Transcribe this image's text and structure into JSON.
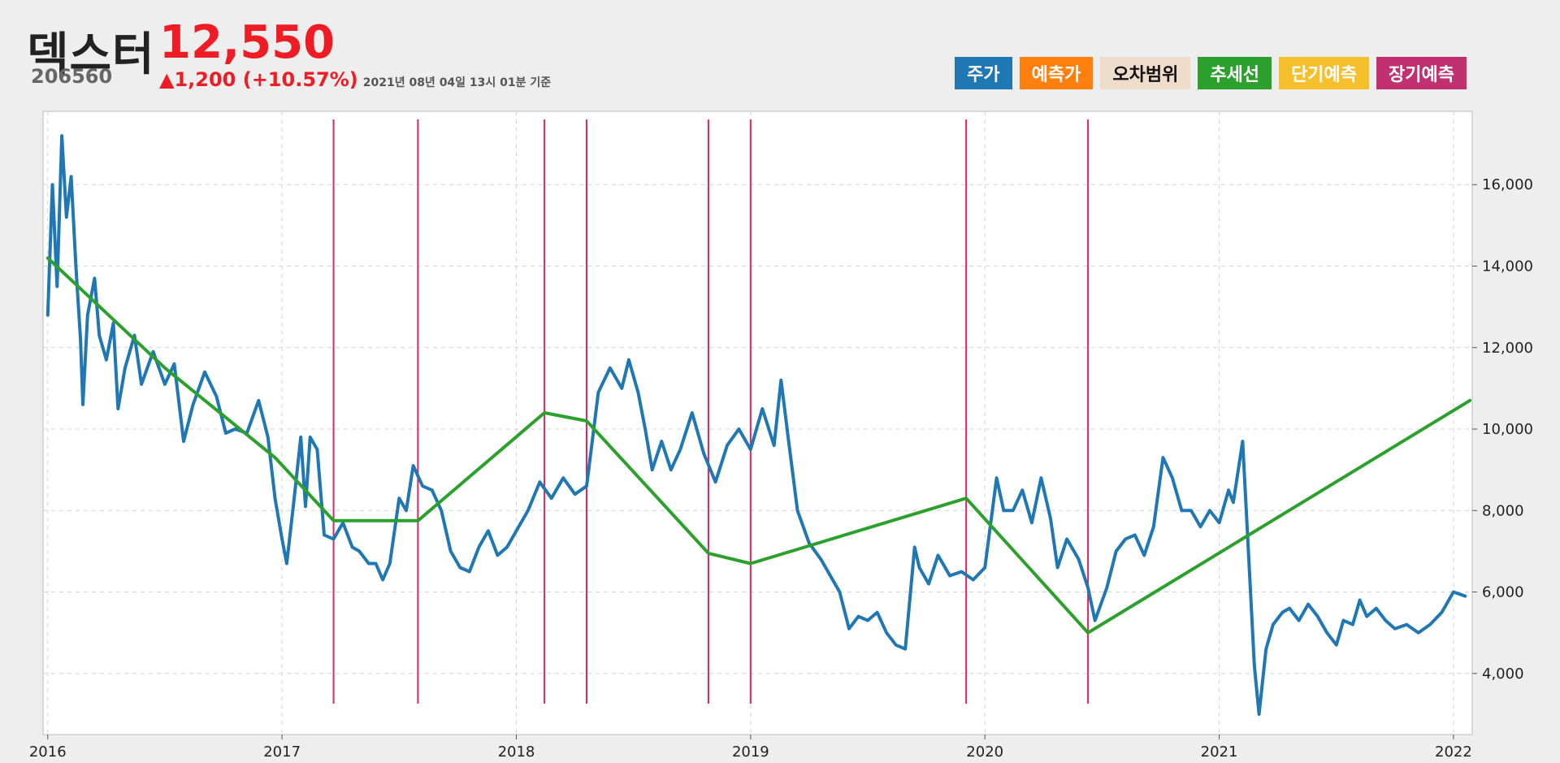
{
  "header": {
    "company_name": "덱스터",
    "ticker_code": "206560",
    "price": "12,550",
    "change": "▲1,200 (+10.57%)",
    "as_of": "2021년 08년 04일 13시 01분 기준"
  },
  "legend": [
    {
      "label": "주가",
      "color": "#1f77b4",
      "text_color": "#ffffff"
    },
    {
      "label": "예측가",
      "color": "#ff7f0e",
      "text_color": "#ffffff"
    },
    {
      "label": "오차범위",
      "color": "#f0dccb",
      "text_color": "#111111"
    },
    {
      "label": "추세선",
      "color": "#2ca02c",
      "text_color": "#ffffff"
    },
    {
      "label": "단기예측",
      "color": "#f6c02c",
      "text_color": "#ffffff"
    },
    {
      "label": "장기예측",
      "color": "#c1306f",
      "text_color": "#ffffff"
    }
  ],
  "chart_data": {
    "type": "line",
    "xlim": [
      2015.98,
      2022.08
    ],
    "ylim": [
      2500,
      17800
    ],
    "x_ticks": [
      2016,
      2017,
      2018,
      2019,
      2020,
      2021,
      2022
    ],
    "x_tick_labels": [
      "2016",
      "2017",
      "2018",
      "2019",
      "2020",
      "2021",
      "2022"
    ],
    "y_ticks": [
      4000,
      6000,
      8000,
      10000,
      12000,
      14000,
      16000
    ],
    "y_tick_labels": [
      "4,000",
      "6,000",
      "8,000",
      "10,000",
      "12,000",
      "14,000",
      "16,000"
    ],
    "grid": true,
    "series": [
      {
        "role": "price",
        "color": "#1f77b4",
        "points": [
          [
            2016.0,
            12800
          ],
          [
            2016.02,
            16000
          ],
          [
            2016.04,
            13500
          ],
          [
            2016.06,
            17200
          ],
          [
            2016.08,
            15200
          ],
          [
            2016.1,
            16200
          ],
          [
            2016.12,
            14000
          ],
          [
            2016.14,
            12200
          ],
          [
            2016.15,
            10600
          ],
          [
            2016.17,
            12800
          ],
          [
            2016.2,
            13700
          ],
          [
            2016.22,
            12300
          ],
          [
            2016.25,
            11700
          ],
          [
            2016.28,
            12600
          ],
          [
            2016.3,
            10500
          ],
          [
            2016.33,
            11500
          ],
          [
            2016.37,
            12300
          ],
          [
            2016.4,
            11100
          ],
          [
            2016.45,
            11900
          ],
          [
            2016.5,
            11100
          ],
          [
            2016.54,
            11600
          ],
          [
            2016.58,
            9700
          ],
          [
            2016.62,
            10600
          ],
          [
            2016.67,
            11400
          ],
          [
            2016.72,
            10800
          ],
          [
            2016.76,
            9900
          ],
          [
            2016.8,
            10000
          ],
          [
            2016.85,
            9900
          ],
          [
            2016.9,
            10700
          ],
          [
            2016.94,
            9800
          ],
          [
            2016.97,
            8300
          ],
          [
            2017.0,
            7300
          ],
          [
            2017.02,
            6700
          ],
          [
            2017.05,
            8200
          ],
          [
            2017.08,
            9800
          ],
          [
            2017.1,
            8100
          ],
          [
            2017.12,
            9800
          ],
          [
            2017.15,
            9500
          ],
          [
            2017.18,
            7400
          ],
          [
            2017.22,
            7300
          ],
          [
            2017.26,
            7700
          ],
          [
            2017.3,
            7100
          ],
          [
            2017.33,
            7000
          ],
          [
            2017.37,
            6700
          ],
          [
            2017.4,
            6700
          ],
          [
            2017.43,
            6300
          ],
          [
            2017.46,
            6700
          ],
          [
            2017.5,
            8300
          ],
          [
            2017.53,
            8000
          ],
          [
            2017.56,
            9100
          ],
          [
            2017.6,
            8600
          ],
          [
            2017.64,
            8500
          ],
          [
            2017.68,
            8000
          ],
          [
            2017.72,
            7000
          ],
          [
            2017.76,
            6600
          ],
          [
            2017.8,
            6500
          ],
          [
            2017.84,
            7100
          ],
          [
            2017.88,
            7500
          ],
          [
            2017.92,
            6900
          ],
          [
            2017.96,
            7100
          ],
          [
            2018.0,
            7500
          ],
          [
            2018.05,
            8000
          ],
          [
            2018.1,
            8700
          ],
          [
            2018.15,
            8300
          ],
          [
            2018.2,
            8800
          ],
          [
            2018.25,
            8400
          ],
          [
            2018.3,
            8600
          ],
          [
            2018.35,
            10900
          ],
          [
            2018.4,
            11500
          ],
          [
            2018.45,
            11000
          ],
          [
            2018.48,
            11700
          ],
          [
            2018.52,
            10900
          ],
          [
            2018.55,
            10000
          ],
          [
            2018.58,
            9000
          ],
          [
            2018.62,
            9700
          ],
          [
            2018.66,
            9000
          ],
          [
            2018.7,
            9500
          ],
          [
            2018.75,
            10400
          ],
          [
            2018.8,
            9400
          ],
          [
            2018.85,
            8700
          ],
          [
            2018.9,
            9600
          ],
          [
            2018.95,
            10000
          ],
          [
            2019.0,
            9500
          ],
          [
            2019.05,
            10500
          ],
          [
            2019.1,
            9600
          ],
          [
            2019.13,
            11200
          ],
          [
            2019.16,
            9800
          ],
          [
            2019.2,
            8000
          ],
          [
            2019.25,
            7200
          ],
          [
            2019.3,
            6800
          ],
          [
            2019.35,
            6300
          ],
          [
            2019.38,
            6000
          ],
          [
            2019.42,
            5100
          ],
          [
            2019.46,
            5400
          ],
          [
            2019.5,
            5300
          ],
          [
            2019.54,
            5500
          ],
          [
            2019.58,
            5000
          ],
          [
            2019.62,
            4700
          ],
          [
            2019.66,
            4600
          ],
          [
            2019.7,
            7100
          ],
          [
            2019.72,
            6600
          ],
          [
            2019.76,
            6200
          ],
          [
            2019.8,
            6900
          ],
          [
            2019.85,
            6400
          ],
          [
            2019.9,
            6500
          ],
          [
            2019.95,
            6300
          ],
          [
            2020.0,
            6600
          ],
          [
            2020.05,
            8800
          ],
          [
            2020.08,
            8000
          ],
          [
            2020.12,
            8000
          ],
          [
            2020.16,
            8500
          ],
          [
            2020.2,
            7700
          ],
          [
            2020.24,
            8800
          ],
          [
            2020.28,
            7800
          ],
          [
            2020.31,
            6600
          ],
          [
            2020.35,
            7300
          ],
          [
            2020.4,
            6800
          ],
          [
            2020.44,
            6100
          ],
          [
            2020.47,
            5300
          ],
          [
            2020.52,
            6100
          ],
          [
            2020.56,
            7000
          ],
          [
            2020.6,
            7300
          ],
          [
            2020.64,
            7400
          ],
          [
            2020.68,
            6900
          ],
          [
            2020.72,
            7600
          ],
          [
            2020.76,
            9300
          ],
          [
            2020.8,
            8800
          ],
          [
            2020.84,
            8000
          ],
          [
            2020.88,
            8000
          ],
          [
            2020.92,
            7600
          ],
          [
            2020.96,
            8000
          ],
          [
            2021.0,
            7700
          ],
          [
            2021.04,
            8500
          ],
          [
            2021.06,
            8200
          ],
          [
            2021.1,
            9700
          ],
          [
            2021.12,
            7500
          ],
          [
            2021.15,
            4200
          ],
          [
            2021.17,
            3000
          ],
          [
            2021.2,
            4600
          ],
          [
            2021.23,
            5200
          ],
          [
            2021.27,
            5500
          ],
          [
            2021.3,
            5600
          ],
          [
            2021.34,
            5300
          ],
          [
            2021.38,
            5700
          ],
          [
            2021.42,
            5400
          ],
          [
            2021.46,
            5000
          ],
          [
            2021.5,
            4700
          ],
          [
            2021.53,
            5300
          ],
          [
            2021.57,
            5200
          ],
          [
            2021.6,
            5800
          ],
          [
            2021.63,
            5400
          ],
          [
            2021.67,
            5600
          ],
          [
            2021.71,
            5300
          ],
          [
            2021.75,
            5100
          ],
          [
            2021.8,
            5200
          ],
          [
            2021.85,
            5000
          ],
          [
            2021.9,
            5200
          ],
          [
            2021.95,
            5500
          ],
          [
            2022.0,
            6000
          ],
          [
            2022.05,
            5900
          ]
        ]
      },
      {
        "role": "trend",
        "color": "#2ca02c",
        "points": [
          [
            2016.0,
            14200
          ],
          [
            2016.5,
            11500
          ],
          [
            2016.97,
            9300
          ],
          [
            2017.22,
            7750
          ],
          [
            2017.58,
            7750
          ],
          [
            2018.12,
            10400
          ],
          [
            2018.3,
            10200
          ],
          [
            2018.82,
            6950
          ],
          [
            2019.0,
            6700
          ],
          [
            2019.92,
            8300
          ],
          [
            2020.44,
            5000
          ],
          [
            2022.07,
            10700
          ]
        ]
      }
    ],
    "vertical_lines": [
      2017.22,
      2017.58,
      2018.12,
      2018.3,
      2018.82,
      2019.0,
      2019.92,
      2020.44
    ]
  }
}
